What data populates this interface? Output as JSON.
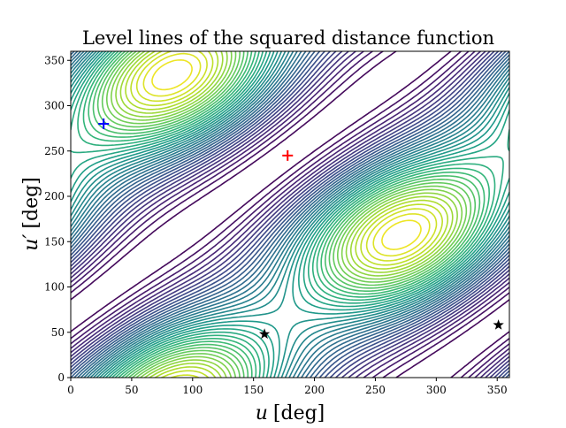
{
  "chart_data": {
    "type": "contour",
    "title": "Level lines of the squared distance function",
    "xlabel": "u [deg]",
    "ylabel": "u′ [deg]",
    "xlabel_var": "u",
    "ylabel_var": "u′",
    "label_unit": "[deg]",
    "xlim": [
      0,
      360
    ],
    "ylim": [
      0,
      360
    ],
    "xticks": [
      0,
      50,
      100,
      150,
      200,
      250,
      300,
      350
    ],
    "yticks": [
      0,
      50,
      100,
      150,
      200,
      250,
      300,
      350
    ],
    "colormap": "viridis",
    "grid": false,
    "markers": [
      {
        "u": 27,
        "u_prime": 280,
        "symbol": "plus",
        "color": "#0000ff"
      },
      {
        "u": 178,
        "u_prime": 245,
        "symbol": "plus",
        "color": "#ff0000"
      },
      {
        "u": 159,
        "u_prime": 48,
        "symbol": "star",
        "color": "#000000"
      },
      {
        "u": 351,
        "u_prime": 58,
        "symbol": "star",
        "color": "#000000"
      }
    ]
  }
}
